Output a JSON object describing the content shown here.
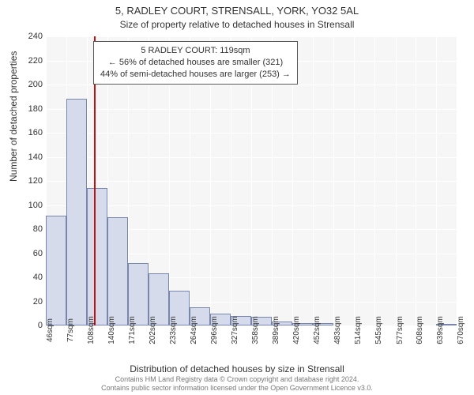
{
  "header": {
    "title": "5, RADLEY COURT, STRENSALL, YORK, YO32 5AL",
    "subtitle": "Size of property relative to detached houses in Strensall"
  },
  "chart": {
    "type": "histogram",
    "background_color": "#f6f6f6",
    "grid_color": "#ffffff",
    "bar_fill": "#d5dbeb",
    "bar_stroke": "#7886ad",
    "marker_color": "#c01010",
    "ylim": [
      0,
      240
    ],
    "ytick_step": 20,
    "yticks": [
      0,
      20,
      40,
      60,
      80,
      100,
      120,
      140,
      160,
      180,
      200,
      220,
      240
    ],
    "xticks": [
      "46sqm",
      "77sqm",
      "108sqm",
      "140sqm",
      "171sqm",
      "202sqm",
      "233sqm",
      "264sqm",
      "296sqm",
      "327sqm",
      "358sqm",
      "389sqm",
      "420sqm",
      "452sqm",
      "483sqm",
      "514sqm",
      "545sqm",
      "577sqm",
      "608sqm",
      "639sqm",
      "670sqm"
    ],
    "xlim_sqm": [
      46,
      670
    ],
    "bars": [
      {
        "x0": 46,
        "x1": 77,
        "value": 91
      },
      {
        "x0": 77,
        "x1": 108,
        "value": 188
      },
      {
        "x0": 108,
        "x1": 140,
        "value": 114
      },
      {
        "x0": 140,
        "x1": 171,
        "value": 90
      },
      {
        "x0": 171,
        "x1": 202,
        "value": 52
      },
      {
        "x0": 202,
        "x1": 233,
        "value": 43
      },
      {
        "x0": 233,
        "x1": 264,
        "value": 29
      },
      {
        "x0": 264,
        "x1": 296,
        "value": 15
      },
      {
        "x0": 296,
        "x1": 327,
        "value": 10
      },
      {
        "x0": 327,
        "x1": 358,
        "value": 8
      },
      {
        "x0": 358,
        "x1": 389,
        "value": 7
      },
      {
        "x0": 389,
        "x1": 420,
        "value": 3
      },
      {
        "x0": 420,
        "x1": 452,
        "value": 2
      },
      {
        "x0": 452,
        "x1": 483,
        "value": 2
      },
      {
        "x0": 483,
        "x1": 514,
        "value": 0
      },
      {
        "x0": 514,
        "x1": 545,
        "value": 0
      },
      {
        "x0": 545,
        "x1": 577,
        "value": 0
      },
      {
        "x0": 577,
        "x1": 608,
        "value": 0
      },
      {
        "x0": 608,
        "x1": 639,
        "value": 0
      },
      {
        "x0": 639,
        "x1": 670,
        "value": 1
      }
    ],
    "marker_sqm": 119,
    "ylabel": "Number of detached properties",
    "xlabel": "Distribution of detached houses by size in Strensall",
    "annotation": {
      "line1": "5 RADLEY COURT: 119sqm",
      "line2": "← 56% of detached houses are smaller (321)",
      "line3": "44% of semi-detached houses are larger (253) →"
    }
  },
  "footer": {
    "line1": "Contains HM Land Registry data © Crown copyright and database right 2024.",
    "line2": "Contains public sector information licensed under the Open Government Licence v3.0."
  }
}
